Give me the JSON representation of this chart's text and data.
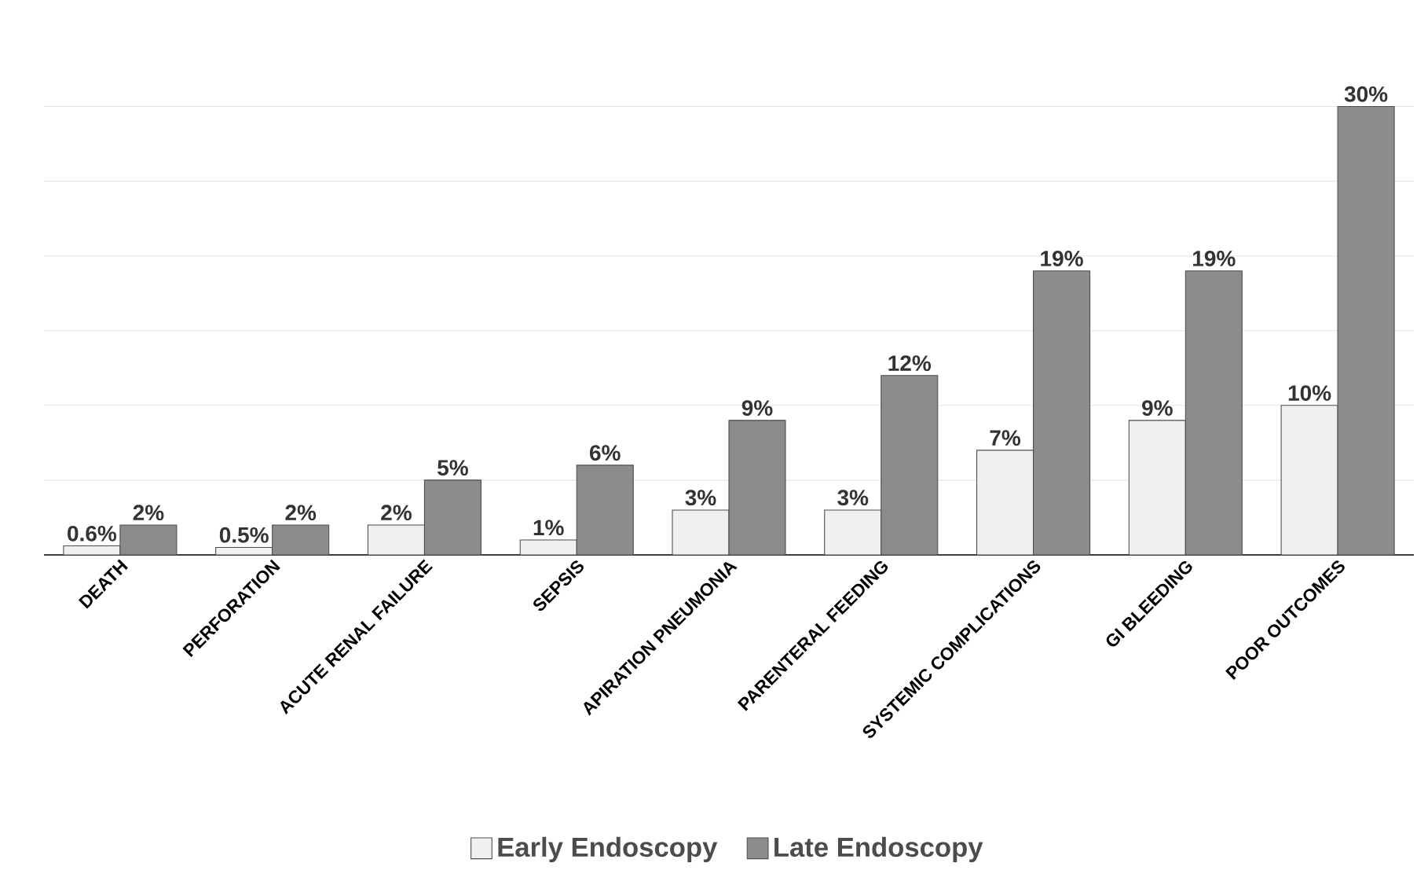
{
  "chart_data": {
    "type": "bar",
    "categories": [
      "DEATH",
      "PERFORATION",
      "ACUTE RENAL FAILURE",
      "SEPSIS",
      "APIRATION PNEUMONIA",
      "PARENTERAL FEEDING",
      "SYSTEMIC COMPLICATIONS",
      "GI BLEEDING",
      "POOR OUTCOMES"
    ],
    "series": [
      {
        "name": "Early Endoscopy",
        "color": "#f0f0f0",
        "values": [
          0.6,
          0.5,
          2,
          1,
          3,
          3,
          7,
          9,
          10
        ],
        "value_labels": [
          "0.6%",
          "0.5%",
          "2%",
          "1%",
          "3%",
          "3%",
          "7%",
          "9%",
          "10%"
        ]
      },
      {
        "name": "Late Endoscopy",
        "color": "#8c8c8c",
        "values": [
          2,
          2,
          5,
          6,
          9,
          12,
          19,
          19,
          30
        ],
        "value_labels": [
          "2%",
          "2%",
          "5%",
          "6%",
          "9%",
          "12%",
          "19%",
          "19%",
          "30%"
        ]
      }
    ],
    "grid": "y",
    "legend": "bottom",
    "tick_labels": "x"
  }
}
